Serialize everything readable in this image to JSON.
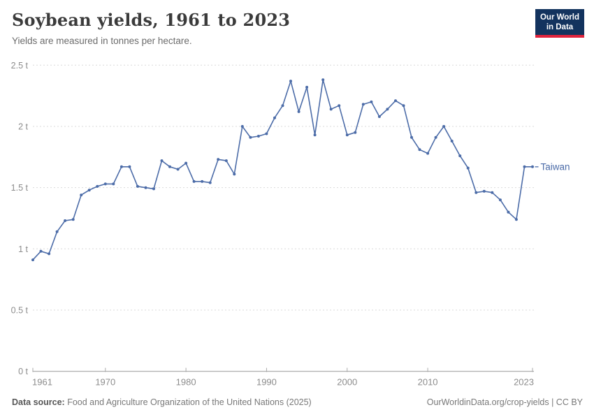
{
  "header": {
    "title": "Soybean yields, 1961 to 2023",
    "subtitle": "Yields are measured in tonnes per hectare."
  },
  "logo": {
    "line1": "Our World",
    "line2": "in Data",
    "bg_color": "#13335E",
    "bar_color": "#E0233C"
  },
  "chart_data": {
    "type": "line",
    "title": "Soybean yields, 1961 to 2023",
    "subtitle": "Yields are measured in tonnes per hectare.",
    "unit": "tonnes per hectare",
    "xlabel": "",
    "ylabel": "",
    "ylim": [
      0,
      2.5
    ],
    "ytick_step": 0.5,
    "grid": "horizontal-dashed",
    "legend": "end-of-line-label",
    "x": [
      1961,
      1962,
      1963,
      1964,
      1965,
      1966,
      1967,
      1968,
      1969,
      1970,
      1971,
      1972,
      1973,
      1974,
      1975,
      1976,
      1977,
      1978,
      1979,
      1980,
      1981,
      1982,
      1983,
      1984,
      1985,
      1986,
      1987,
      1988,
      1989,
      1990,
      1991,
      1992,
      1993,
      1994,
      1995,
      1996,
      1997,
      1998,
      1999,
      2000,
      2001,
      2002,
      2003,
      2004,
      2005,
      2006,
      2007,
      2008,
      2009,
      2010,
      2011,
      2012,
      2013,
      2014,
      2015,
      2016,
      2017,
      2018,
      2019,
      2020,
      2021,
      2022,
      2023
    ],
    "series": [
      {
        "name": "Taiwan",
        "color": "#4C6CA8",
        "values": [
          0.91,
          0.98,
          0.96,
          1.14,
          1.23,
          1.24,
          1.44,
          1.48,
          1.51,
          1.53,
          1.53,
          1.67,
          1.67,
          1.51,
          1.5,
          1.49,
          1.72,
          1.67,
          1.65,
          1.7,
          1.55,
          1.55,
          1.54,
          1.73,
          1.72,
          1.61,
          2.0,
          1.91,
          1.92,
          1.94,
          2.07,
          2.17,
          2.37,
          2.12,
          2.32,
          1.93,
          2.38,
          2.14,
          2.17,
          1.93,
          1.95,
          2.18,
          2.2,
          2.08,
          2.14,
          2.21,
          2.17,
          1.91,
          1.81,
          1.78,
          1.91,
          2.0,
          1.88,
          1.76,
          1.66,
          1.46,
          1.47,
          1.46,
          1.4,
          1.3,
          1.24,
          1.67,
          1.67
        ]
      }
    ]
  },
  "axes": {
    "y_ticks": [
      {
        "value": 0,
        "label": "0 t"
      },
      {
        "value": 0.5,
        "label": "0.5 t"
      },
      {
        "value": 1,
        "label": "1 t"
      },
      {
        "value": 1.5,
        "label": "1.5 t"
      },
      {
        "value": 2,
        "label": "2 t"
      },
      {
        "value": 2.5,
        "label": "2.5 t"
      }
    ],
    "x_ticks": [
      {
        "year": 1961,
        "label": "1961"
      },
      {
        "year": 1970,
        "label": "1970"
      },
      {
        "year": 1980,
        "label": "1980"
      },
      {
        "year": 1990,
        "label": "1990"
      },
      {
        "year": 2000,
        "label": "2000"
      },
      {
        "year": 2010,
        "label": "2010"
      },
      {
        "year": 2023,
        "label": "2023"
      }
    ]
  },
  "footer": {
    "source_label": "Data source:",
    "source_text": " Food and Agriculture Organization of the United Nations (2025)",
    "right_text": "OurWorldinData.org/crop-yields | CC BY"
  }
}
